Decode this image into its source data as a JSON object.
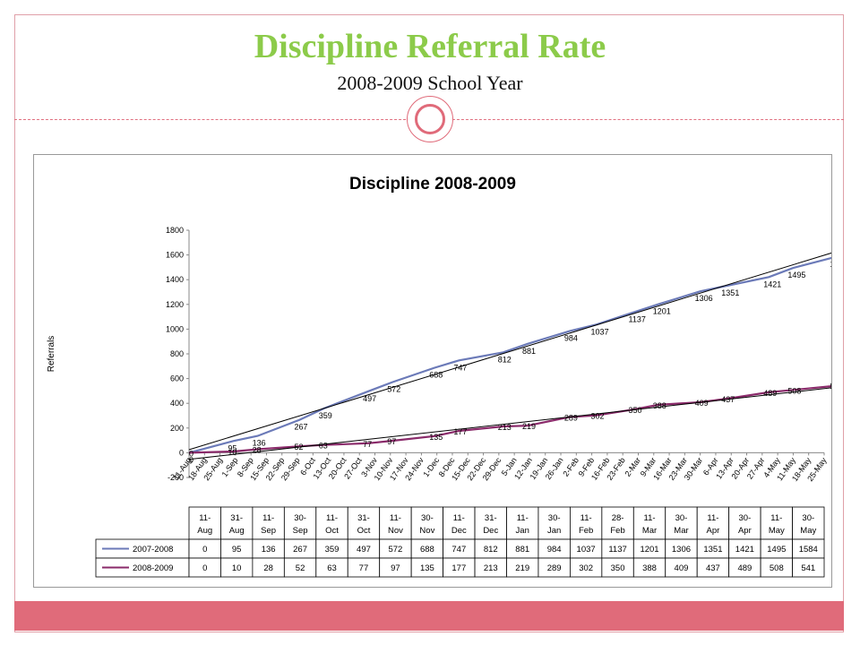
{
  "slide": {
    "title": "Discipline Referral Rate",
    "subtitle": "2008-2009 School Year"
  },
  "colors": {
    "title": "#8ccb4a",
    "accent": "#e06b7a",
    "series_2007": "#6b7ab8",
    "series_2008": "#8a2a6a",
    "trend": "#000000"
  },
  "chart_data": {
    "type": "line",
    "title": "Discipline 2008-2009",
    "xlabel": "",
    "ylabel": "Referrals",
    "ylim": [
      -200,
      1800
    ],
    "yticks": [
      -200,
      0,
      200,
      400,
      600,
      800,
      1000,
      1200,
      1400,
      1600,
      1800
    ],
    "x_tick_labels": [
      "11-Aug",
      "18-Aug",
      "25-Aug",
      "1-Sep",
      "8-Sep",
      "15-Sep",
      "22-Sep",
      "29-Sep",
      "6-Oct",
      "13-Oct",
      "20-Oct",
      "27-Oct",
      "3-Nov",
      "10-Nov",
      "17-Nov",
      "24-Nov",
      "1-Dec",
      "8-Dec",
      "15-Dec",
      "22-Dec",
      "29-Dec",
      "5-Jan",
      "12-Jan",
      "19-Jan",
      "26-Jan",
      "2-Feb",
      "9-Feb",
      "16-Feb",
      "23-Feb",
      "2-Mar",
      "9-Mar",
      "16-Mar",
      "23-Mar",
      "30-Mar",
      "6-Apr",
      "13-Apr",
      "20-Apr",
      "27-Apr",
      "4-May",
      "11-May",
      "18-May",
      "25-May"
    ],
    "x_start": "2008-08-11",
    "point_dates": [
      "2008-08-11",
      "2008-08-31",
      "2008-09-11",
      "2008-09-30",
      "2008-10-11",
      "2008-10-31",
      "2008-11-11",
      "2008-11-30",
      "2008-12-11",
      "2008-12-31",
      "2009-01-11",
      "2009-01-30",
      "2009-02-11",
      "2009-02-28",
      "2009-03-11",
      "2009-03-30",
      "2009-04-11",
      "2009-04-30",
      "2009-05-11",
      "2009-05-30"
    ],
    "table_categories": [
      "11-Aug",
      "31-Aug",
      "11-Sep",
      "30-Sep",
      "11-Oct",
      "31-Oct",
      "11-Nov",
      "30-Nov",
      "11-Dec",
      "31-Dec",
      "11-Jan",
      "30-Jan",
      "11-Feb",
      "28-Feb",
      "11-Mar",
      "30-Mar",
      "11-Apr",
      "30-Apr",
      "11-May",
      "30-May"
    ],
    "series": [
      {
        "name": "2007-2008",
        "values": [
          0,
          95,
          136,
          267,
          359,
          497,
          572,
          688,
          747,
          812,
          881,
          984,
          1037,
          1137,
          1201,
          1306,
          1351,
          1421,
          1495,
          1584
        ]
      },
      {
        "name": "2008-2009",
        "values": [
          0,
          10,
          28,
          52,
          63,
          77,
          97,
          135,
          177,
          213,
          219,
          289,
          302,
          350,
          388,
          409,
          437,
          489,
          508,
          541
        ]
      }
    ],
    "grid": false,
    "legend": "data table below chart",
    "trendlines": true
  }
}
